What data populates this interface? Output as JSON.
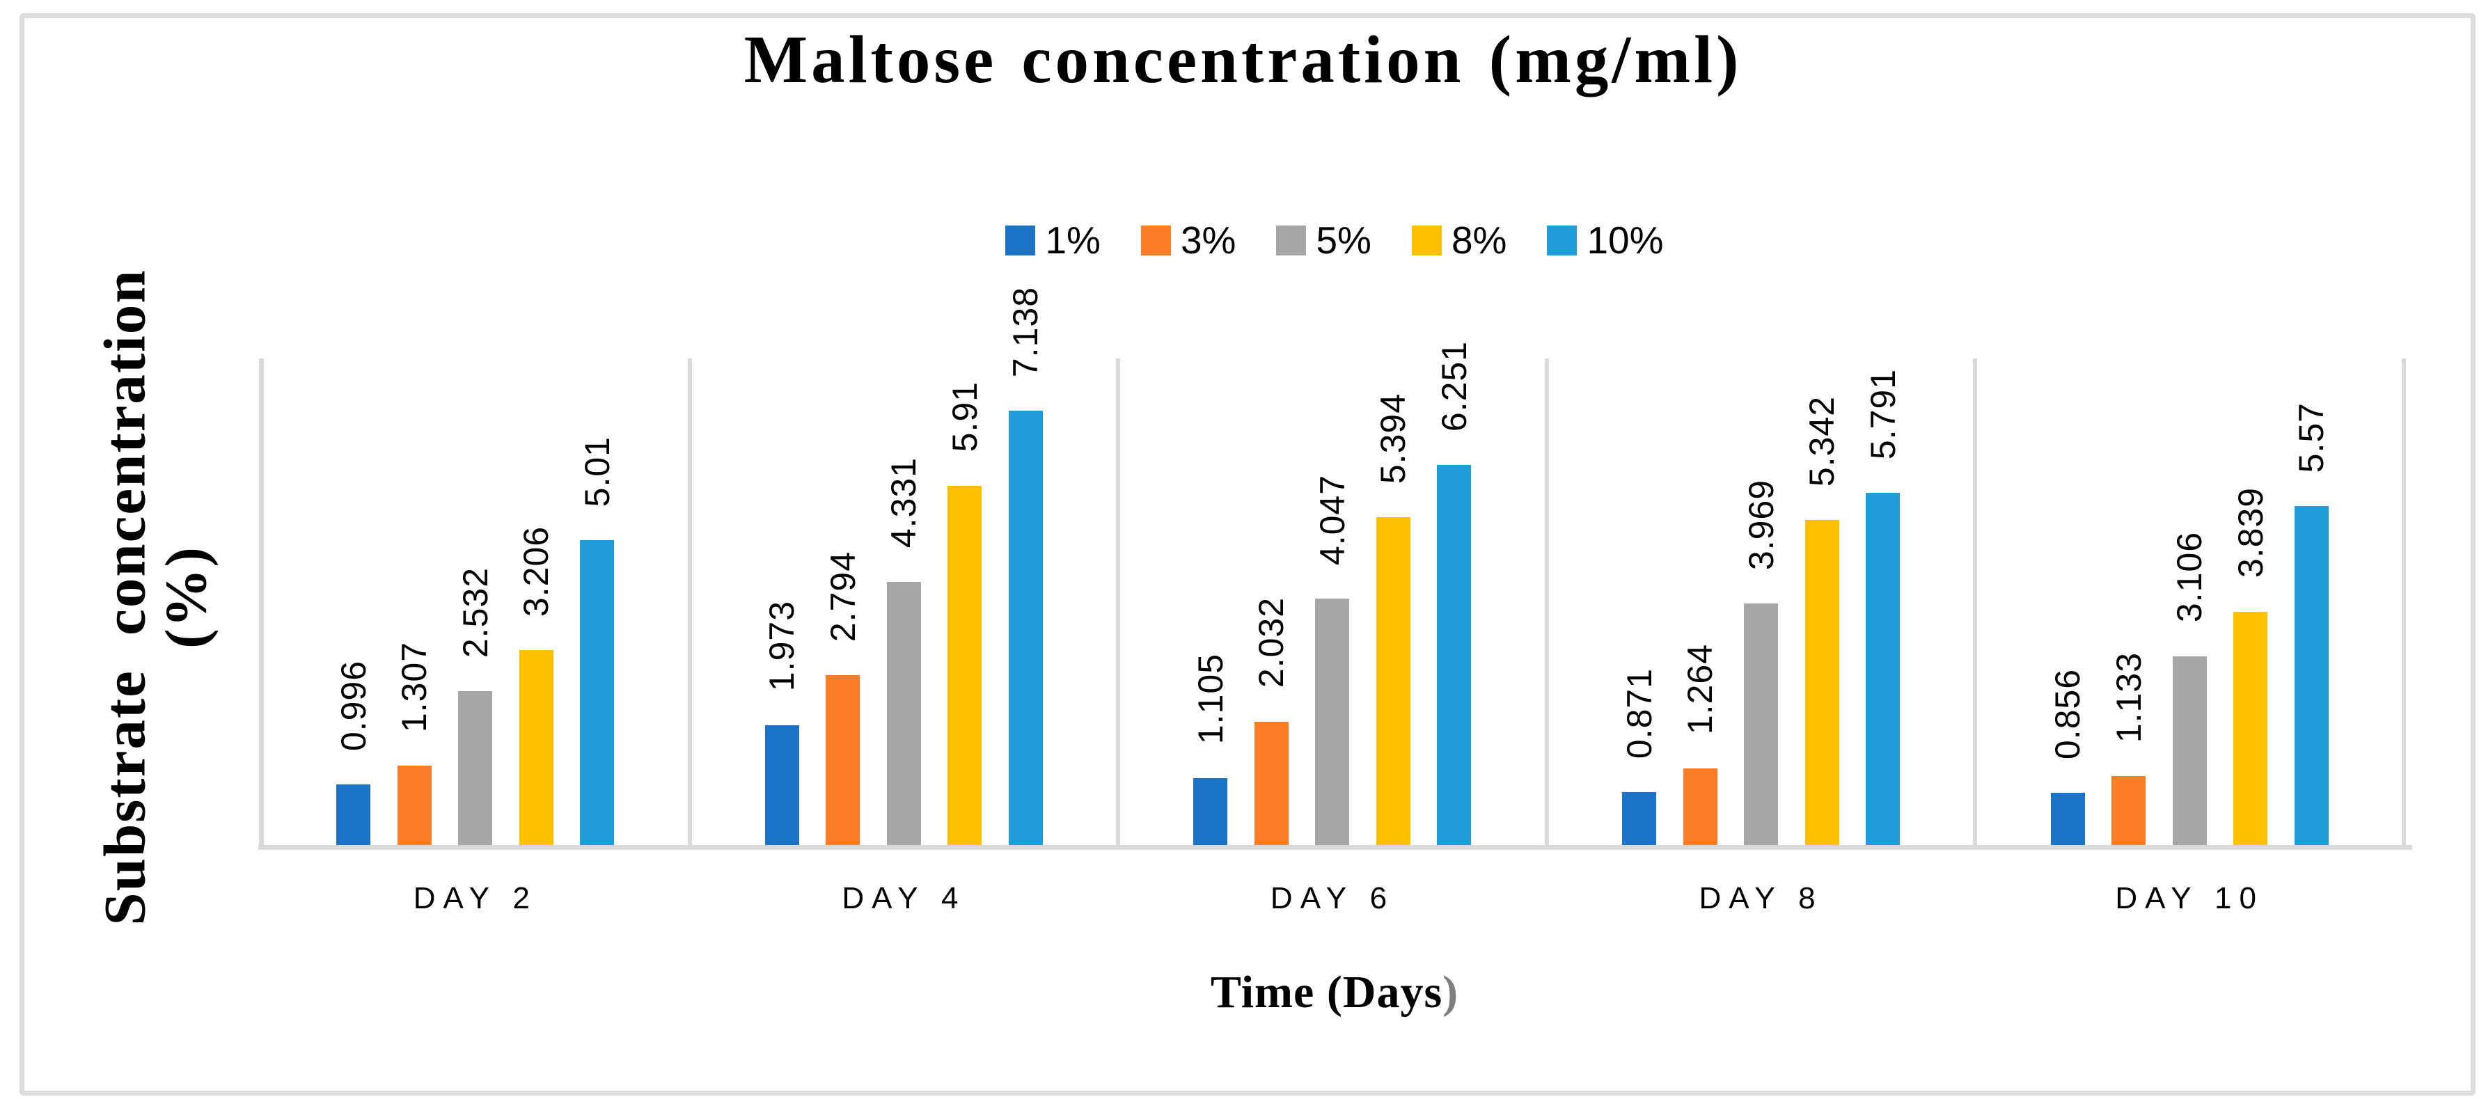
{
  "title": "Maltose concentration (mg/ml)",
  "y_axis": {
    "title_line1": "Substrate concentration",
    "title_line2": "(%)"
  },
  "x_axis": {
    "title_main": "Time (Days",
    "title_closing_paren": ")"
  },
  "legend": {
    "position": "top-center",
    "items": [
      {
        "label": "1%",
        "color": "#1a73c5"
      },
      {
        "label": "3%",
        "color": "#fb7d26"
      },
      {
        "label": "5%",
        "color": "#a6a6a6"
      },
      {
        "label": "8%",
        "color": "#ffc000"
      },
      {
        "label": "10%",
        "color": "#209cd8"
      }
    ]
  },
  "colors": {
    "gridline": "#d9d9d9",
    "axis_line": "#d9d9d9",
    "figure_border": "#dcdcdc",
    "xtitle_paren_gray": "#7f7f7f",
    "label_text": "#000000"
  },
  "chart_data": {
    "type": "bar",
    "title": "Maltose concentration (mg/ml)",
    "xlabel": "Time (Days)",
    "ylabel": "Substrate concentration (%)",
    "categories": [
      "DAY 2",
      "DAY 4",
      "DAY 6",
      "DAY 8",
      "DAY 10"
    ],
    "series": [
      {
        "name": "1%",
        "color": "#1a73c5",
        "values": [
          0.996,
          1.973,
          1.105,
          0.871,
          0.856
        ]
      },
      {
        "name": "3%",
        "color": "#fb7d26",
        "values": [
          1.307,
          2.794,
          2.032,
          1.264,
          1.133
        ]
      },
      {
        "name": "5%",
        "color": "#a6a6a6",
        "values": [
          2.532,
          4.331,
          4.047,
          3.969,
          3.106
        ]
      },
      {
        "name": "8%",
        "color": "#ffc000",
        "values": [
          3.206,
          5.91,
          5.394,
          5.342,
          3.839
        ]
      },
      {
        "name": "10%",
        "color": "#209cd8",
        "values": [
          5.01,
          7.138,
          6.251,
          5.791,
          5.57
        ]
      }
    ],
    "ylim": [
      0,
      8
    ],
    "y_tick_labels_visible": false,
    "gridlines": "vertical category separators only",
    "legend_position": "top-center",
    "data_labels": "values shown rotated 90deg above each bar"
  }
}
